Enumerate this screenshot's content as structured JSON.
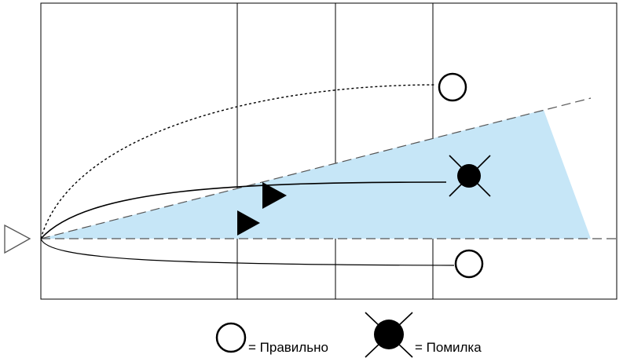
{
  "legend": {
    "correct_label": "= Правильно",
    "error_label": "= Помилка",
    "correct_icon": "circle-outline-icon",
    "error_icon": "filled-circle-cross-icon"
  },
  "colors": {
    "zone_fill": "#c6e6f7",
    "stroke": "#000000",
    "dashed_line": "#555555",
    "background": "#ffffff"
  },
  "icons": {
    "start_marker": "triangle-outline-icon",
    "direction_marker": "triangle-filled-icon"
  }
}
